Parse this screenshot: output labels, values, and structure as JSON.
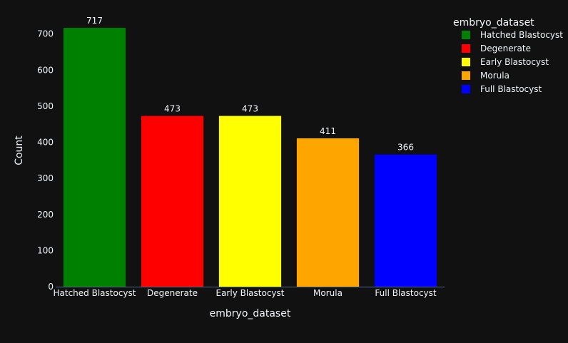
{
  "chart_data": {
    "type": "bar",
    "xlabel": "embryo_dataset",
    "ylabel": "Count",
    "categories": [
      "Hatched Blastocyst",
      "Degenerate",
      "Early Blastocyst",
      "Morula",
      "Full Blastocyst"
    ],
    "values": [
      717,
      473,
      473,
      411,
      366
    ],
    "data_labels": [
      "717",
      "473",
      "473",
      "411",
      "366"
    ],
    "colors": [
      "#008000",
      "#ff0000",
      "#ffff00",
      "#ffa500",
      "#0000ff"
    ],
    "ylim": [
      0,
      754.7
    ],
    "y_ticks": [
      0,
      100,
      200,
      300,
      400,
      500,
      600,
      700
    ],
    "grid": false,
    "legend": {
      "title": "embryo_dataset",
      "position": "top-right",
      "entries": [
        "Hatched Blastocyst",
        "Degenerate",
        "Early Blastocyst",
        "Morula",
        "Full Blastocyst"
      ]
    }
  },
  "theme": {
    "background": "#111111",
    "text_color": "#f2f5fa",
    "axis_line_color": "#506784"
  }
}
